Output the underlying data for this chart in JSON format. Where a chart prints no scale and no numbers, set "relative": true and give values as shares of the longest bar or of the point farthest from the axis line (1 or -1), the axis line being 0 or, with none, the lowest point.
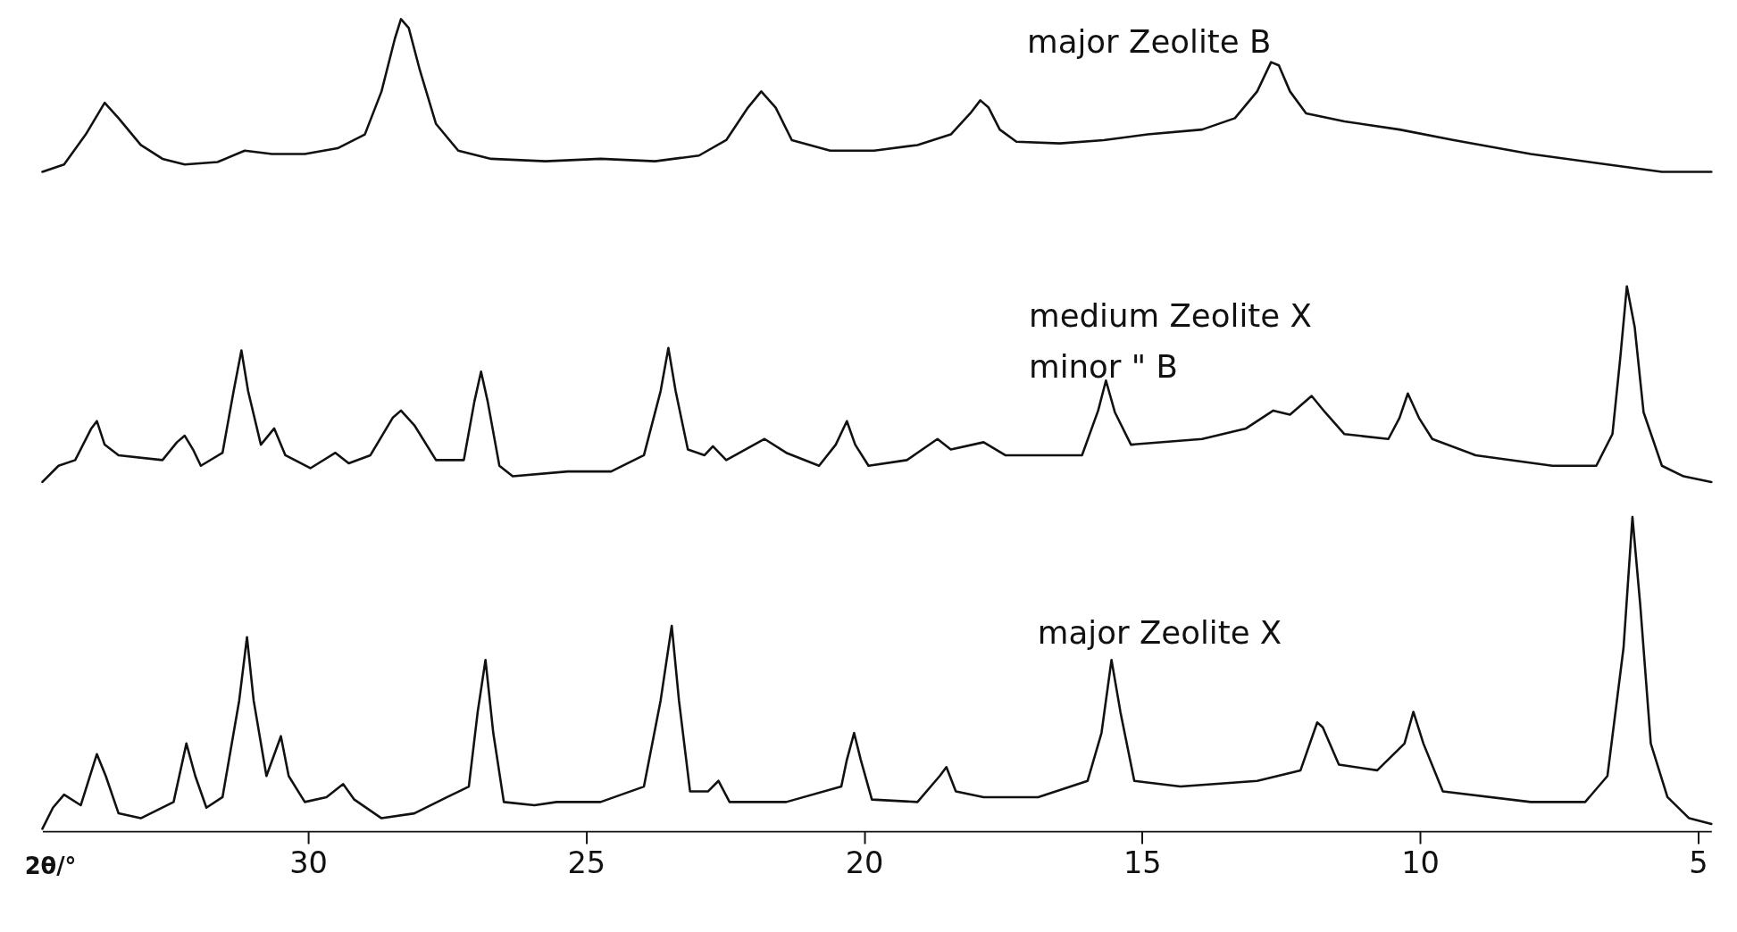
{
  "chart_data": {
    "type": "line",
    "relative": true,
    "xlabel": "2θ/°",
    "xlim": [
      34.78,
      4.76
    ],
    "xticks": [
      30,
      25,
      20,
      15,
      10,
      5
    ],
    "grid": false,
    "legend": false,
    "marker": "none",
    "line_style": "solid",
    "annotations": [
      "major Zeolite B",
      "medium Zeolite X",
      "minor       \"       B",
      "major   Zeolite X"
    ],
    "series": [
      {
        "color": "#111111",
        "x": [
          34.78,
          34.39,
          34.0,
          33.66,
          33.41,
          33.01,
          32.62,
          32.22,
          31.63,
          31.14,
          30.65,
          30.06,
          29.47,
          28.98,
          28.68,
          28.44,
          28.33,
          28.19,
          27.99,
          27.7,
          27.3,
          26.71,
          25.73,
          24.74,
          23.76,
          22.97,
          22.48,
          22.09,
          21.85,
          21.59,
          21.3,
          20.61,
          19.82,
          19.04,
          18.44,
          18.09,
          17.91,
          17.76,
          17.56,
          17.26,
          16.48,
          15.69,
          14.9,
          13.92,
          13.33,
          12.93,
          12.68,
          12.54,
          12.34,
          12.05,
          11.36,
          10.37,
          9.39,
          8.01,
          6.63,
          5.65,
          4.76
        ],
        "values": [
          0.812,
          0.821,
          0.858,
          0.897,
          0.878,
          0.845,
          0.828,
          0.821,
          0.824,
          0.838,
          0.834,
          0.834,
          0.841,
          0.858,
          0.911,
          0.976,
          1.0,
          0.989,
          0.937,
          0.871,
          0.838,
          0.828,
          0.825,
          0.828,
          0.825,
          0.832,
          0.851,
          0.891,
          0.911,
          0.891,
          0.851,
          0.838,
          0.838,
          0.845,
          0.858,
          0.884,
          0.9,
          0.891,
          0.864,
          0.849,
          0.847,
          0.851,
          0.858,
          0.864,
          0.878,
          0.911,
          0.947,
          0.943,
          0.911,
          0.884,
          0.874,
          0.864,
          0.851,
          0.834,
          0.821,
          0.812,
          0.812
        ]
      },
      {
        "color": "#111111",
        "x": [
          34.78,
          34.49,
          34.19,
          33.9,
          33.8,
          33.66,
          33.41,
          32.62,
          32.36,
          32.22,
          32.07,
          31.93,
          31.54,
          31.34,
          31.2,
          31.08,
          30.85,
          30.61,
          30.41,
          29.96,
          29.51,
          29.27,
          28.88,
          28.48,
          28.33,
          28.09,
          27.7,
          27.2,
          27.01,
          26.89,
          26.77,
          26.56,
          26.32,
          25.33,
          24.55,
          23.96,
          23.66,
          23.52,
          23.39,
          23.17,
          22.87,
          22.72,
          22.48,
          21.79,
          21.4,
          20.81,
          20.51,
          20.31,
          20.16,
          19.92,
          19.23,
          18.68,
          18.44,
          17.85,
          17.46,
          16.08,
          15.79,
          15.65,
          15.49,
          15.2,
          13.92,
          13.13,
          12.64,
          12.34,
          11.95,
          11.71,
          11.36,
          10.57,
          10.37,
          10.22,
          10.02,
          9.78,
          9.0,
          7.62,
          6.83,
          6.54,
          6.4,
          6.28,
          6.14,
          5.98,
          5.65,
          5.26,
          4.76
        ],
        "values": [
          0.43,
          0.45,
          0.457,
          0.496,
          0.505,
          0.476,
          0.463,
          0.457,
          0.479,
          0.487,
          0.47,
          0.45,
          0.466,
          0.542,
          0.592,
          0.542,
          0.476,
          0.496,
          0.463,
          0.447,
          0.466,
          0.453,
          0.463,
          0.509,
          0.518,
          0.5,
          0.457,
          0.457,
          0.529,
          0.566,
          0.529,
          0.45,
          0.437,
          0.443,
          0.443,
          0.463,
          0.542,
          0.595,
          0.542,
          0.47,
          0.463,
          0.474,
          0.457,
          0.483,
          0.466,
          0.45,
          0.476,
          0.505,
          0.476,
          0.45,
          0.457,
          0.483,
          0.47,
          0.479,
          0.463,
          0.463,
          0.518,
          0.555,
          0.516,
          0.476,
          0.483,
          0.496,
          0.518,
          0.513,
          0.536,
          0.516,
          0.489,
          0.483,
          0.509,
          0.539,
          0.509,
          0.483,
          0.463,
          0.45,
          0.45,
          0.489,
          0.582,
          0.671,
          0.621,
          0.516,
          0.45,
          0.437,
          0.43
        ]
      },
      {
        "color": "#111111",
        "x": [
          34.78,
          34.59,
          34.39,
          34.09,
          33.8,
          33.64,
          33.41,
          33.01,
          32.42,
          32.19,
          32.03,
          31.83,
          31.54,
          31.24,
          31.1,
          30.98,
          30.75,
          30.49,
          30.35,
          30.06,
          29.67,
          29.37,
          29.17,
          28.68,
          28.09,
          27.5,
          27.11,
          26.95,
          26.81,
          26.67,
          26.48,
          25.93,
          25.53,
          24.74,
          23.96,
          23.66,
          23.46,
          23.33,
          23.13,
          22.81,
          22.62,
          22.42,
          21.4,
          20.41,
          20.31,
          20.18,
          20.06,
          19.86,
          19.04,
          18.64,
          18.52,
          18.35,
          17.85,
          16.87,
          15.98,
          15.73,
          15.55,
          15.39,
          15.14,
          14.31,
          12.93,
          12.15,
          11.85,
          11.75,
          11.46,
          10.77,
          10.28,
          10.12,
          9.94,
          9.59,
          8.01,
          7.03,
          6.63,
          6.34,
          6.18,
          6.04,
          5.85,
          5.55,
          5.16,
          4.76
        ],
        "values": [
          0.003,
          0.029,
          0.045,
          0.032,
          0.095,
          0.068,
          0.022,
          0.016,
          0.036,
          0.108,
          0.068,
          0.029,
          0.042,
          0.161,
          0.239,
          0.161,
          0.068,
          0.117,
          0.068,
          0.036,
          0.042,
          0.058,
          0.039,
          0.016,
          0.022,
          0.042,
          0.055,
          0.147,
          0.211,
          0.121,
          0.036,
          0.032,
          0.036,
          0.036,
          0.055,
          0.161,
          0.253,
          0.161,
          0.049,
          0.049,
          0.062,
          0.036,
          0.036,
          0.055,
          0.088,
          0.121,
          0.088,
          0.039,
          0.036,
          0.068,
          0.079,
          0.049,
          0.042,
          0.042,
          0.062,
          0.121,
          0.211,
          0.147,
          0.062,
          0.055,
          0.062,
          0.075,
          0.134,
          0.128,
          0.082,
          0.075,
          0.108,
          0.147,
          0.108,
          0.049,
          0.036,
          0.036,
          0.068,
          0.226,
          0.387,
          0.279,
          0.108,
          0.042,
          0.016,
          0.009
        ]
      }
    ]
  }
}
